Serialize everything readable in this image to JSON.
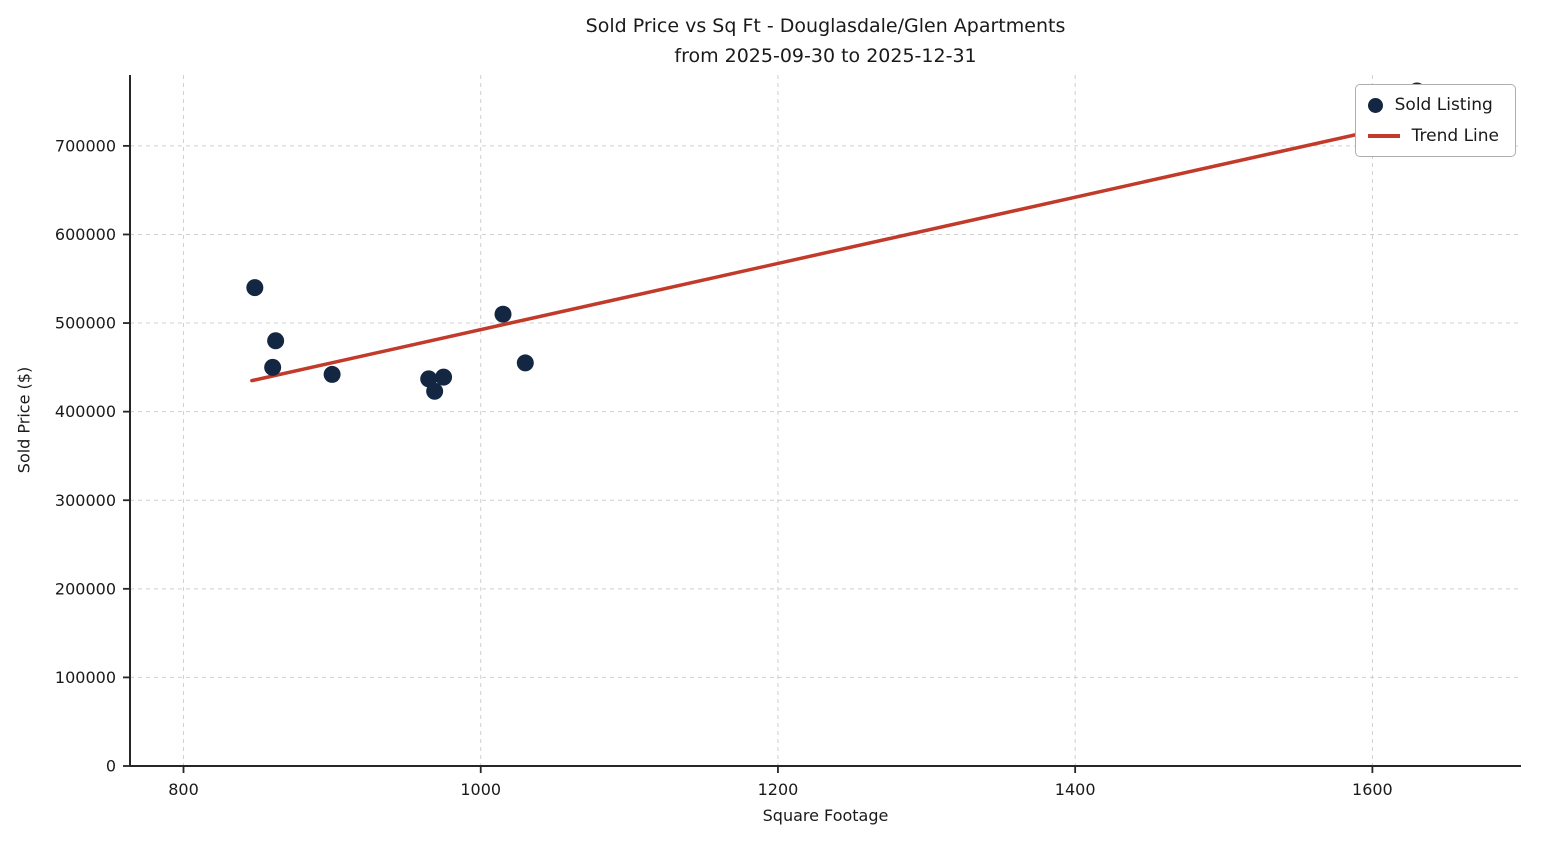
{
  "chart_data": {
    "type": "scatter",
    "title": "Sold Price vs Sq Ft - Douglasdale/Glen Apartments",
    "subtitle": "from 2025-09-30 to 2025-12-31",
    "xlabel": "Square Footage",
    "ylabel": "Sold Price ($)",
    "xlim": [
      764,
      1700
    ],
    "ylim": [
      0,
      780000
    ],
    "xticks": [
      800,
      1000,
      1200,
      1400,
      1600
    ],
    "yticks": [
      0,
      100000,
      200000,
      300000,
      400000,
      500000,
      600000,
      700000
    ],
    "grid": true,
    "legend": [
      "Sold Listing",
      "Trend Line"
    ],
    "legend_position": "upper right",
    "colors": {
      "marker": "#132742",
      "trend": "#c13a2a",
      "grid": "#cfcfcf",
      "spine": "#262626",
      "text": "#1a1a1a"
    },
    "points": [
      {
        "sqft": 848,
        "price": 540000
      },
      {
        "sqft": 860,
        "price": 450000
      },
      {
        "sqft": 862,
        "price": 480000
      },
      {
        "sqft": 900,
        "price": 442000
      },
      {
        "sqft": 965,
        "price": 437000
      },
      {
        "sqft": 969,
        "price": 423000
      },
      {
        "sqft": 975,
        "price": 439000
      },
      {
        "sqft": 1015,
        "price": 510000
      },
      {
        "sqft": 1030,
        "price": 455000
      },
      {
        "sqft": 1630,
        "price": 762000
      }
    ],
    "trend_line": {
      "x": [
        846,
        1630
      ],
      "y": [
        435000,
        728000
      ]
    }
  }
}
